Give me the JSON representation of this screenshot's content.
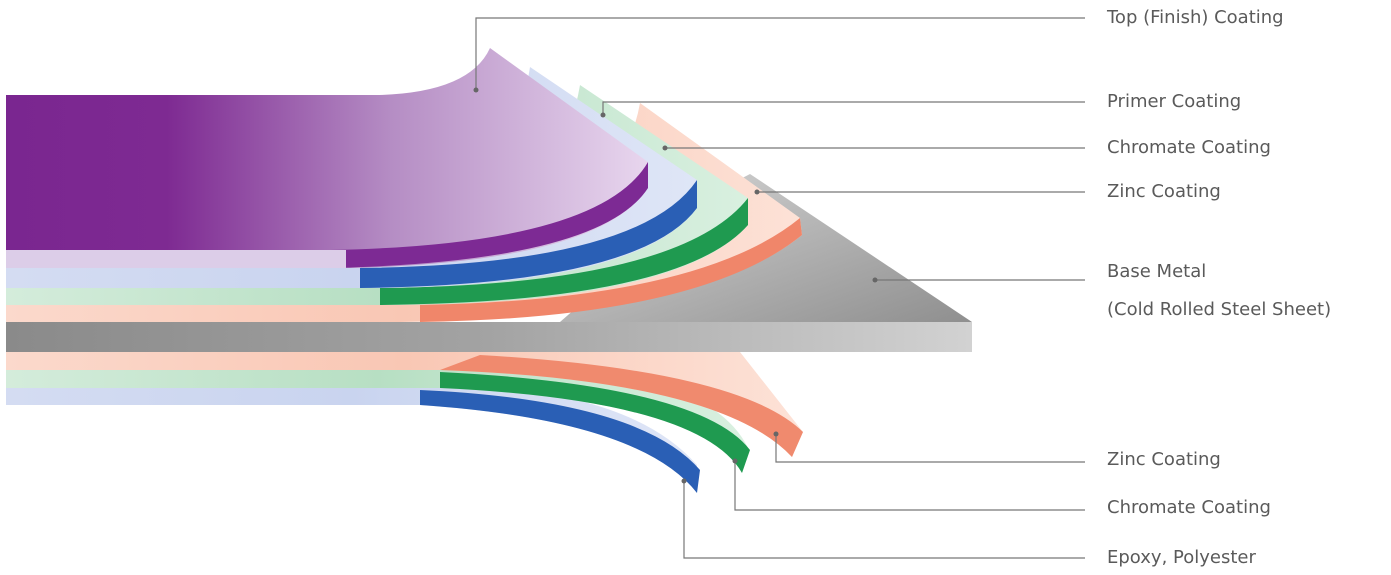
{
  "top_layers": [
    "Top (Finish) Coating",
    "Primer Coating",
    "Chromate Coating",
    "Zinc Coating"
  ],
  "base_metal": [
    "Base Metal",
    "(Cold Rolled Steel Sheet)"
  ],
  "bottom_layers": [
    "Zinc Coating",
    "Chromate Coating",
    "Epoxy, Polyester"
  ]
}
